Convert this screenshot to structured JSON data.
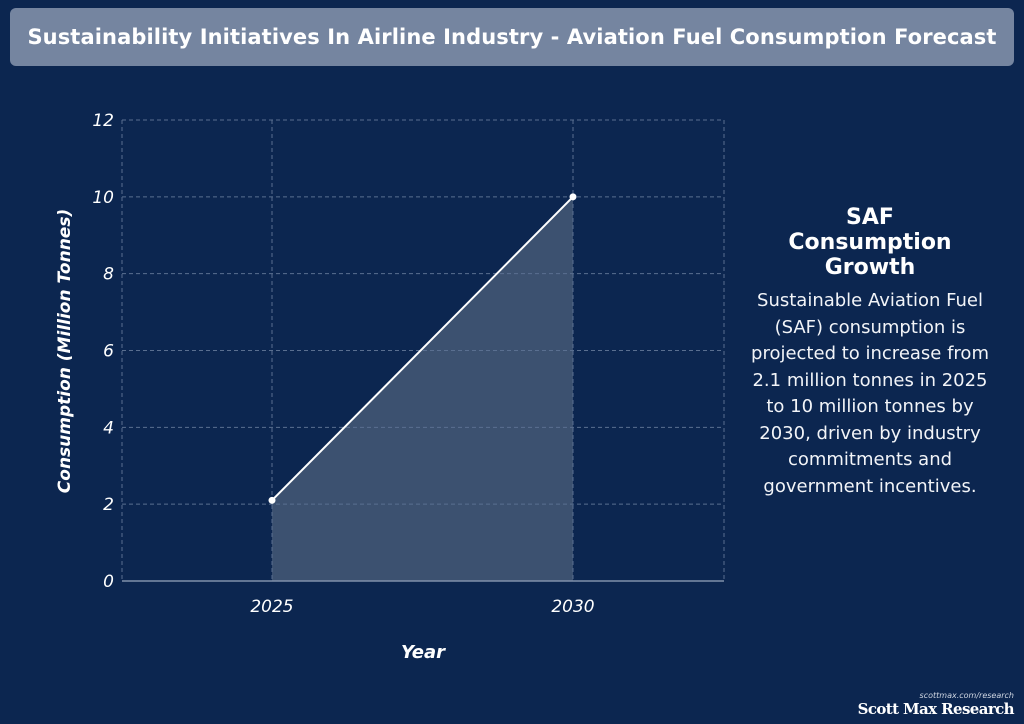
{
  "header": {
    "title": "Sustainability Initiatives In Airline Industry - Aviation Fuel Consumption Forecast"
  },
  "side_panel": {
    "heading_lines": [
      "SAF",
      "Consumption",
      "Growth"
    ],
    "body": "Sustainable Aviation Fuel (SAF) consumption is projected to increase from 2.1 million tonnes in 2025 to 10 million tonnes by 2030, driven by industry commitments and government incentives."
  },
  "credit": {
    "url": "scottmax.com/research",
    "brand": "Scott Max Research"
  },
  "colors": {
    "background": "#0c2650",
    "title_bar": "#7585a0",
    "area_fill": "#3c5170",
    "line": "#ffffff",
    "grid": "#5a6f90"
  },
  "chart_data": {
    "type": "area",
    "title": "",
    "xlabel": "Year",
    "ylabel": "Consumption (Million Tonnes)",
    "x": [
      "2025",
      "2030"
    ],
    "series": [
      {
        "values": [
          2.1,
          10
        ]
      }
    ],
    "ylim": [
      0,
      12
    ],
    "yticks": [
      0,
      2,
      4,
      6,
      8,
      10,
      12
    ],
    "grid": true,
    "legend": "none"
  }
}
